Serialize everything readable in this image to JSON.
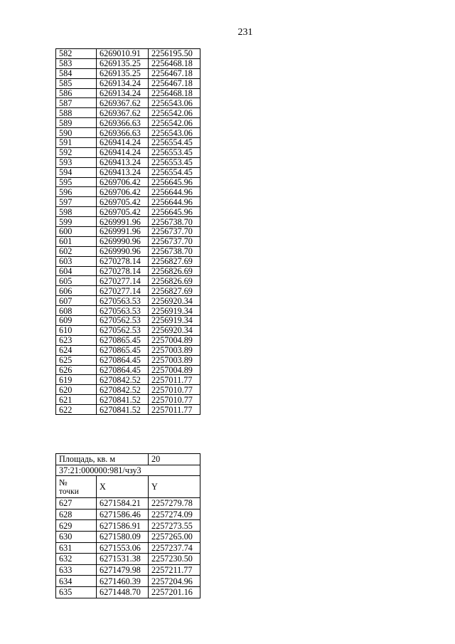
{
  "page_number": "231",
  "rows_top": [
    [
      "582",
      "6269010.91",
      "2256195.50"
    ],
    [
      "583",
      "6269135.25",
      "2256468.18"
    ],
    [
      "584",
      "6269135.25",
      "2256467.18"
    ],
    [
      "585",
      "6269134.24",
      "2256467.18"
    ],
    [
      "586",
      "6269134.24",
      "2256468.18"
    ],
    [
      "587",
      "6269367.62",
      "2256543.06"
    ],
    [
      "588",
      "6269367.62",
      "2256542.06"
    ],
    [
      "589",
      "6269366.63",
      "2256542.06"
    ],
    [
      "590",
      "6269366.63",
      "2256543.06"
    ],
    [
      "591",
      "6269414.24",
      "2256554.45"
    ],
    [
      "592",
      "6269414.24",
      "2256553.45"
    ],
    [
      "593",
      "6269413.24",
      "2256553.45"
    ],
    [
      "594",
      "6269413.24",
      "2256554.45"
    ],
    [
      "595",
      "6269706.42",
      "2256645.96"
    ],
    [
      "596",
      "6269706.42",
      "2256644.96"
    ],
    [
      "597",
      "6269705.42",
      "2256644.96"
    ],
    [
      "598",
      "6269705.42",
      "2256645.96"
    ],
    [
      "599",
      "6269991.96",
      "2256738.70"
    ],
    [
      "600",
      "6269991.96",
      "2256737.70"
    ],
    [
      "601",
      "6269990.96",
      "2256737.70"
    ],
    [
      "602",
      "6269990.96",
      "2256738.70"
    ],
    [
      "603",
      "6270278.14",
      "2256827.69"
    ],
    [
      "604",
      "6270278.14",
      "2256826.69"
    ],
    [
      "605",
      "6270277.14",
      "2256826.69"
    ],
    [
      "606",
      "6270277.14",
      "2256827.69"
    ],
    [
      "607",
      "6270563.53",
      "2256920.34"
    ],
    [
      "608",
      "6270563.53",
      "2256919.34"
    ],
    [
      "609",
      "6270562.53",
      "2256919.34"
    ],
    [
      "610",
      "6270562.53",
      "2256920.34"
    ],
    [
      "623",
      "6270865.45",
      "2257004.89"
    ],
    [
      "624",
      "6270865.45",
      "2257003.89"
    ],
    [
      "625",
      "6270864.45",
      "2257003.89"
    ],
    [
      "626",
      "6270864.45",
      "2257004.89"
    ],
    [
      "619",
      "6270842.52",
      "2257011.77"
    ],
    [
      "620",
      "6270842.52",
      "2257010.77"
    ],
    [
      "621",
      "6270841.52",
      "2257010.77"
    ],
    [
      "622",
      "6270841.52",
      "2257011.77"
    ]
  ],
  "area": {
    "label": "Площадь, кв. м",
    "value": "20"
  },
  "section_id": "37:21:000000:981/чзу3",
  "header": {
    "point_no_line1": "№",
    "point_no_line2": "точки",
    "x": "X",
    "y": "Y"
  },
  "rows_bottom": [
    [
      "627",
      "6271584.21",
      "2257279.78"
    ],
    [
      "628",
      "6271586.46",
      "2257274.09"
    ],
    [
      "629",
      "6271586.91",
      "2257273.55"
    ],
    [
      "630",
      "6271580.09",
      "2257265.00"
    ],
    [
      "631",
      "6271553.06",
      "2257237.74"
    ],
    [
      "632",
      "6271531.38",
      "2257230.50"
    ],
    [
      "633",
      "6271479.98",
      "2257211.77"
    ],
    [
      "634",
      "6271460.39",
      "2257204.96"
    ],
    [
      "635",
      "6271448.70",
      "2257201.16"
    ]
  ]
}
